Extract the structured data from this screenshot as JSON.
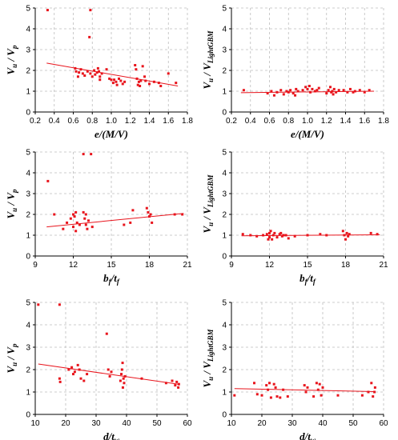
{
  "colors": {
    "points": "#e8141c",
    "fit": "#e8141c",
    "grid": "#bdbdbd"
  },
  "chart_data": [
    {
      "type": "scatter",
      "xlabel_parts": [
        {
          "t": "e/(M/V)"
        }
      ],
      "ylabel_parts": [
        {
          "t": "V"
        },
        {
          "t": "u",
          "sub": true
        },
        {
          "t": " / V"
        },
        {
          "t": "p",
          "sub": true
        }
      ],
      "xlim": [
        0.2,
        1.8
      ],
      "ylim": [
        0,
        5
      ],
      "xticks": [
        "0.2",
        "0.4",
        "0.6",
        "0.8",
        "1.0",
        "1.2",
        "1.4",
        "1.6",
        "1.8"
      ],
      "yticks": [
        "0",
        "1",
        "2",
        "3",
        "4",
        "5"
      ],
      "points": [
        [
          0.33,
          4.9
        ],
        [
          0.78,
          4.9
        ],
        [
          0.77,
          3.6
        ],
        [
          0.62,
          2.1
        ],
        [
          0.63,
          1.95
        ],
        [
          0.65,
          1.7
        ],
        [
          0.66,
          1.9
        ],
        [
          0.68,
          2.05
        ],
        [
          0.7,
          1.85
        ],
        [
          0.72,
          1.75
        ],
        [
          0.75,
          1.95
        ],
        [
          0.78,
          1.85
        ],
        [
          0.8,
          1.7
        ],
        [
          0.82,
          2.0
        ],
        [
          0.83,
          1.8
        ],
        [
          0.85,
          1.9
        ],
        [
          0.86,
          2.1
        ],
        [
          0.87,
          1.95
        ],
        [
          0.88,
          1.7
        ],
        [
          0.88,
          1.55
        ],
        [
          0.9,
          1.85
        ],
        [
          0.95,
          2.05
        ],
        [
          0.98,
          1.6
        ],
        [
          1.0,
          1.55
        ],
        [
          1.02,
          1.4
        ],
        [
          1.03,
          1.55
        ],
        [
          1.05,
          1.45
        ],
        [
          1.06,
          1.3
        ],
        [
          1.08,
          1.6
        ],
        [
          1.1,
          1.5
        ],
        [
          1.12,
          1.35
        ],
        [
          1.14,
          1.45
        ],
        [
          1.25,
          2.25
        ],
        [
          1.26,
          2.05
        ],
        [
          1.27,
          1.6
        ],
        [
          1.28,
          1.3
        ],
        [
          1.29,
          1.45
        ],
        [
          1.3,
          1.25
        ],
        [
          1.31,
          1.5
        ],
        [
          1.33,
          2.2
        ],
        [
          1.35,
          1.7
        ],
        [
          1.36,
          1.5
        ],
        [
          1.4,
          1.35
        ],
        [
          1.45,
          1.45
        ],
        [
          1.5,
          1.4
        ],
        [
          1.52,
          1.25
        ],
        [
          1.6,
          1.85
        ],
        [
          1.68,
          1.4
        ]
      ],
      "fit": [
        [
          0.32,
          2.35
        ],
        [
          1.7,
          1.25
        ]
      ]
    },
    {
      "type": "scatter",
      "xlabel_parts": [
        {
          "t": "e/(M/V)"
        }
      ],
      "ylabel_parts": [
        {
          "t": "V"
        },
        {
          "t": "u",
          "sub": true
        },
        {
          "t": " / V"
        },
        {
          "t": "LightGBM",
          "sub": true
        }
      ],
      "xlim": [
        0.2,
        1.8
      ],
      "ylim": [
        0,
        5
      ],
      "xticks": [
        "0.2",
        "0.4",
        "0.6",
        "0.8",
        "1.0",
        "1.2",
        "1.4",
        "1.6",
        "1.8"
      ],
      "yticks": [
        "0",
        "1",
        "2",
        "3",
        "4",
        "5"
      ],
      "points": [
        [
          0.33,
          1.05
        ],
        [
          0.58,
          0.9
        ],
        [
          0.62,
          1.0
        ],
        [
          0.65,
          0.8
        ],
        [
          0.68,
          0.95
        ],
        [
          0.72,
          1.05
        ],
        [
          0.75,
          0.85
        ],
        [
          0.78,
          1.0
        ],
        [
          0.8,
          0.95
        ],
        [
          0.82,
          1.05
        ],
        [
          0.85,
          0.9
        ],
        [
          0.87,
          0.8
        ],
        [
          0.88,
          1.1
        ],
        [
          0.9,
          1.0
        ],
        [
          0.95,
          1.05
        ],
        [
          0.98,
          1.2
        ],
        [
          1.0,
          1.1
        ],
        [
          1.02,
          1.25
        ],
        [
          1.03,
          0.95
        ],
        [
          1.05,
          1.1
        ],
        [
          1.08,
          1.0
        ],
        [
          1.1,
          1.05
        ],
        [
          1.12,
          1.15
        ],
        [
          1.2,
          0.9
        ],
        [
          1.22,
          1.05
        ],
        [
          1.24,
          1.2
        ],
        [
          1.25,
          0.95
        ],
        [
          1.26,
          1.0
        ],
        [
          1.27,
          0.85
        ],
        [
          1.28,
          1.1
        ],
        [
          1.3,
          0.95
        ],
        [
          1.33,
          1.05
        ],
        [
          1.38,
          1.05
        ],
        [
          1.42,
          0.95
        ],
        [
          1.45,
          1.1
        ],
        [
          1.48,
          0.95
        ],
        [
          1.5,
          1.0
        ],
        [
          1.55,
          1.05
        ],
        [
          1.6,
          0.95
        ],
        [
          1.65,
          1.05
        ]
      ],
      "fit": [
        [
          0.3,
          0.93
        ],
        [
          1.7,
          1.0
        ]
      ]
    },
    {
      "type": "scatter",
      "xlabel_parts": [
        {
          "t": "b"
        },
        {
          "t": "f",
          "sub": true
        },
        {
          "t": "/t"
        },
        {
          "t": "f",
          "sub": true
        }
      ],
      "ylabel_parts": [
        {
          "t": "V"
        },
        {
          "t": "u",
          "sub": true
        },
        {
          "t": " / V"
        },
        {
          "t": "p",
          "sub": true
        }
      ],
      "xlim": [
        9,
        21
      ],
      "ylim": [
        0,
        5
      ],
      "xticks": [
        "9",
        "12",
        "15",
        "18",
        "21"
      ],
      "yticks": [
        "0",
        "1",
        "2",
        "3",
        "4",
        "5"
      ],
      "points": [
        [
          10.0,
          3.6
        ],
        [
          12.8,
          4.9
        ],
        [
          13.4,
          4.9
        ],
        [
          10.5,
          2.0
        ],
        [
          11.2,
          1.3
        ],
        [
          11.5,
          1.6
        ],
        [
          11.8,
          1.8
        ],
        [
          12.0,
          2.0
        ],
        [
          12.0,
          1.4
        ],
        [
          12.1,
          1.9
        ],
        [
          12.2,
          2.1
        ],
        [
          12.2,
          1.2
        ],
        [
          12.3,
          1.6
        ],
        [
          12.5,
          1.5
        ],
        [
          12.8,
          2.1
        ],
        [
          12.9,
          1.8
        ],
        [
          13.0,
          1.5
        ],
        [
          13.0,
          2.0
        ],
        [
          13.1,
          1.3
        ],
        [
          13.2,
          1.7
        ],
        [
          13.5,
          1.4
        ],
        [
          16.0,
          1.5
        ],
        [
          16.5,
          1.6
        ],
        [
          16.7,
          2.2
        ],
        [
          17.8,
          2.3
        ],
        [
          17.9,
          2.1
        ],
        [
          18.0,
          1.9
        ],
        [
          18.1,
          2.0
        ],
        [
          18.2,
          1.6
        ],
        [
          20.0,
          2.0
        ],
        [
          20.6,
          2.0
        ]
      ],
      "fit": [
        [
          9.9,
          1.4
        ],
        [
          20.7,
          2.05
        ]
      ]
    },
    {
      "type": "scatter",
      "xlabel_parts": [
        {
          "t": "b"
        },
        {
          "t": "f",
          "sub": true
        },
        {
          "t": "/t"
        },
        {
          "t": "f",
          "sub": true
        }
      ],
      "ylabel_parts": [
        {
          "t": "V"
        },
        {
          "t": "u",
          "sub": true
        },
        {
          "t": " / V"
        },
        {
          "t": "LightGBM",
          "sub": true
        }
      ],
      "xlim": [
        9,
        21
      ],
      "ylim": [
        0,
        5
      ],
      "xticks": [
        "9",
        "12",
        "15",
        "18",
        "21"
      ],
      "yticks": [
        "0",
        "1",
        "2",
        "3",
        "4",
        "5"
      ],
      "points": [
        [
          9.9,
          1.05
        ],
        [
          10.5,
          1.0
        ],
        [
          11.0,
          0.95
        ],
        [
          11.5,
          1.0
        ],
        [
          11.8,
          1.05
        ],
        [
          11.9,
          0.8
        ],
        [
          12.0,
          1.1
        ],
        [
          12.0,
          0.9
        ],
        [
          12.1,
          1.2
        ],
        [
          12.2,
          0.8
        ],
        [
          12.3,
          1.0
        ],
        [
          12.4,
          1.1
        ],
        [
          12.6,
          0.9
        ],
        [
          12.8,
          1.05
        ],
        [
          12.9,
          1.1
        ],
        [
          13.0,
          0.95
        ],
        [
          13.1,
          1.0
        ],
        [
          13.3,
          1.0
        ],
        [
          13.5,
          0.85
        ],
        [
          14.0,
          0.95
        ],
        [
          15.0,
          1.0
        ],
        [
          16.0,
          1.05
        ],
        [
          16.5,
          1.0
        ],
        [
          17.8,
          1.2
        ],
        [
          17.9,
          1.0
        ],
        [
          18.0,
          0.8
        ],
        [
          18.1,
          1.1
        ],
        [
          18.2,
          0.95
        ],
        [
          18.3,
          1.05
        ],
        [
          20.0,
          1.1
        ],
        [
          20.5,
          1.05
        ]
      ],
      "fit": [
        [
          9.8,
          0.97
        ],
        [
          20.7,
          1.02
        ]
      ]
    },
    {
      "type": "scatter",
      "xlabel_parts": [
        {
          "t": "d/t"
        },
        {
          "t": "w",
          "sub": true
        }
      ],
      "ylabel_parts": [
        {
          "t": "V"
        },
        {
          "t": "u",
          "sub": true
        },
        {
          "t": " / V"
        },
        {
          "t": "p",
          "sub": true
        }
      ],
      "xlim": [
        10,
        60
      ],
      "ylim": [
        0,
        5
      ],
      "xticks": [
        "10",
        "20",
        "30",
        "40",
        "50",
        "60"
      ],
      "yticks": [
        "0",
        "1",
        "2",
        "3",
        "4",
        "5"
      ],
      "points": [
        [
          11.0,
          4.9
        ],
        [
          18.0,
          4.9
        ],
        [
          33.5,
          3.6
        ],
        [
          18.0,
          1.6
        ],
        [
          18.2,
          1.45
        ],
        [
          21.0,
          2.0
        ],
        [
          22.0,
          2.1
        ],
        [
          22.5,
          1.8
        ],
        [
          23.0,
          1.9
        ],
        [
          24.0,
          2.2
        ],
        [
          24.5,
          2.0
        ],
        [
          25.0,
          1.6
        ],
        [
          26.0,
          1.5
        ],
        [
          27.0,
          1.8
        ],
        [
          34.0,
          2.0
        ],
        [
          34.5,
          1.7
        ],
        [
          35.0,
          1.9
        ],
        [
          38.0,
          1.5
        ],
        [
          38.3,
          1.8
        ],
        [
          38.5,
          2.0
        ],
        [
          38.7,
          2.3
        ],
        [
          38.8,
          1.2
        ],
        [
          39.0,
          1.6
        ],
        [
          39.2,
          1.4
        ],
        [
          39.5,
          1.7
        ],
        [
          45.0,
          1.6
        ],
        [
          53.0,
          1.4
        ],
        [
          55.0,
          1.5
        ],
        [
          56.0,
          1.3
        ],
        [
          56.5,
          1.45
        ],
        [
          57.0,
          1.2
        ],
        [
          57.2,
          1.35
        ]
      ],
      "fit": [
        [
          11,
          2.25
        ],
        [
          57,
          1.35
        ]
      ]
    },
    {
      "type": "scatter",
      "xlabel_parts": [
        {
          "t": "d/t"
        },
        {
          "t": "w",
          "sub": true
        }
      ],
      "ylabel_parts": [
        {
          "t": "V"
        },
        {
          "t": "u",
          "sub": true
        },
        {
          "t": " / V"
        },
        {
          "t": "LightGBM",
          "sub": true
        }
      ],
      "xlim": [
        10,
        60
      ],
      "ylim": [
        0,
        5
      ],
      "xticks": [
        "10",
        "20",
        "30",
        "40",
        "50",
        "60"
      ],
      "yticks": [
        "0",
        "1",
        "2",
        "3",
        "4",
        "5"
      ],
      "points": [
        [
          11.0,
          0.85
        ],
        [
          17.5,
          1.4
        ],
        [
          18.5,
          0.9
        ],
        [
          20.0,
          0.85
        ],
        [
          21.5,
          1.3
        ],
        [
          22.0,
          1.1
        ],
        [
          22.5,
          1.4
        ],
        [
          23.0,
          0.75
        ],
        [
          24.0,
          1.35
        ],
        [
          24.5,
          1.2
        ],
        [
          25.0,
          0.8
        ],
        [
          26.0,
          0.75
        ],
        [
          27.0,
          1.1
        ],
        [
          28.5,
          0.8
        ],
        [
          34.0,
          1.3
        ],
        [
          34.5,
          1.0
        ],
        [
          35.0,
          1.2
        ],
        [
          37.0,
          0.8
        ],
        [
          38.0,
          1.4
        ],
        [
          38.5,
          1.1
        ],
        [
          39.0,
          1.35
        ],
        [
          39.5,
          0.85
        ],
        [
          40.0,
          1.2
        ],
        [
          45.0,
          0.85
        ],
        [
          53.0,
          0.85
        ],
        [
          55.0,
          1.0
        ],
        [
          56.0,
          1.4
        ],
        [
          56.5,
          0.8
        ],
        [
          57.0,
          1.0
        ],
        [
          57.2,
          1.2
        ]
      ],
      "fit": [
        [
          11,
          1.15
        ],
        [
          57,
          1.02
        ]
      ]
    }
  ]
}
